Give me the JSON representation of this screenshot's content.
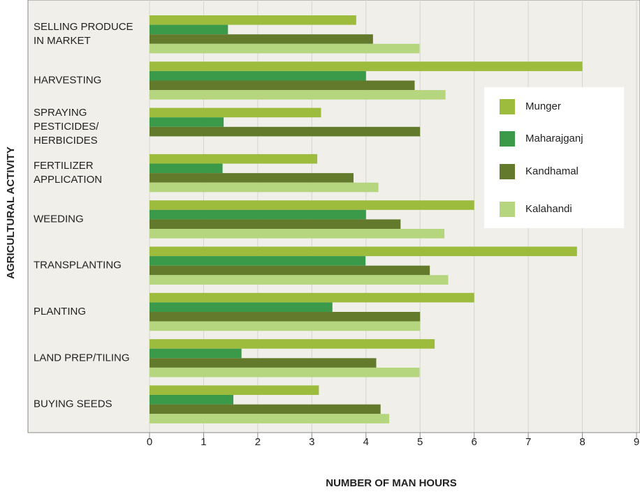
{
  "chart_data": {
    "type": "barh",
    "xlabel": "NUMBER OF MAN HOURS",
    "ylabel": "AGRICULTURAL ACTIVITY",
    "categories": [
      "SELLING PRODUCE\nIN MARKET",
      "HARVESTING",
      "SPRAYING\nPESTICIDES/\nHERBICIDES",
      "FERTILIZER\nAPPLICATION",
      "WEEDING",
      "TRANSPLANTING",
      "PLANTING",
      "LAND PREP/TILING",
      "BUYING SEEDS"
    ],
    "series": [
      {
        "name": "Munger",
        "color": "#9dbb3d",
        "values": [
          3.82,
          8.0,
          3.17,
          3.1,
          6.0,
          7.9,
          6.0,
          5.27,
          3.13
        ]
      },
      {
        "name": "Maharajganj",
        "color": "#3a9a4a",
        "values": [
          1.45,
          4.0,
          1.37,
          1.35,
          4.0,
          3.99,
          3.38,
          1.7,
          1.55
        ]
      },
      {
        "name": "Kandhamal",
        "color": "#637a2c",
        "values": [
          4.13,
          4.9,
          5.0,
          3.77,
          4.64,
          5.18,
          5.0,
          4.19,
          4.27
        ]
      },
      {
        "name": "Kalahandi",
        "color": "#b5d67f",
        "values": [
          4.99,
          5.47,
          null,
          4.23,
          5.45,
          5.52,
          5.0,
          4.99,
          4.43
        ]
      }
    ],
    "xlim": [
      0,
      9
    ],
    "xticks": [
      0,
      1,
      2,
      3,
      4,
      5,
      6,
      7,
      8,
      9
    ],
    "grid": true,
    "legend": "right"
  }
}
